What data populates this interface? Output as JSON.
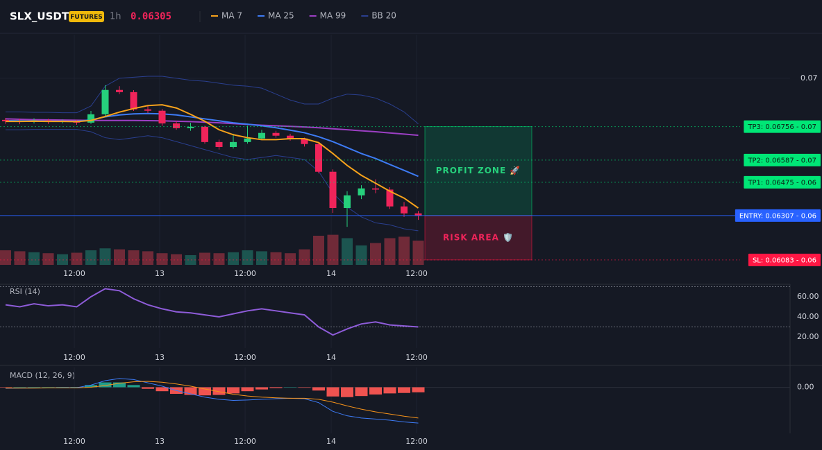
{
  "chart_data": {
    "type": "candlestick",
    "symbol": "SLX_USDT",
    "badge": "FUTURES",
    "interval": "1h",
    "last_price": "0.06305",
    "legend": [
      {
        "name": "MA 7",
        "color": "#f7a21b"
      },
      {
        "name": "MA 25",
        "color": "#3d7bf5"
      },
      {
        "name": "MA 99",
        "color": "#9c3fc4"
      },
      {
        "name": "BB 20",
        "color": "#2a3f8f"
      }
    ],
    "xticks": [
      {
        "value": 4.83,
        "label": "12:00"
      },
      {
        "value": 10.83,
        "label": "13"
      },
      {
        "value": 16.83,
        "label": "12:00"
      },
      {
        "value": 22.88,
        "label": "14"
      },
      {
        "value": 28.88,
        "label": "12:00"
      }
    ],
    "ylim": [
      0.06058,
      0.0722
    ],
    "yticks": [
      0.07
    ],
    "open": [
      0.0679,
      0.06783,
      0.0678,
      0.06787,
      0.0678,
      0.06783,
      0.06776,
      0.06818,
      0.06941,
      0.0693,
      0.06843,
      0.06836,
      0.06772,
      0.06748,
      0.06755,
      0.06678,
      0.06653,
      0.06678,
      0.06696,
      0.06724,
      0.0671,
      0.06696,
      0.06668,
      0.06528,
      0.06345,
      0.06409,
      0.06444,
      0.06438,
      0.06353,
      0.06318
    ],
    "high": [
      0.068,
      0.06795,
      0.06798,
      0.06795,
      0.06792,
      0.0679,
      0.06835,
      0.06965,
      0.0696,
      0.0694,
      0.0686,
      0.06845,
      0.06785,
      0.06775,
      0.0676,
      0.0669,
      0.0672,
      0.0676,
      0.0674,
      0.06735,
      0.0672,
      0.067,
      0.06675,
      0.0654,
      0.0643,
      0.0646,
      0.0649,
      0.0645,
      0.06375,
      0.0633
    ],
    "low": [
      0.0677,
      0.06768,
      0.06772,
      0.0677,
      0.06772,
      0.06765,
      0.0677,
      0.0681,
      0.0692,
      0.06835,
      0.06825,
      0.0676,
      0.0674,
      0.06735,
      0.0667,
      0.0664,
      0.06645,
      0.0667,
      0.0669,
      0.067,
      0.06685,
      0.06655,
      0.0652,
      0.0632,
      0.0625,
      0.0639,
      0.0642,
      0.0634,
      0.063,
      0.06285
    ],
    "close": [
      0.06783,
      0.0678,
      0.06787,
      0.0678,
      0.06783,
      0.06776,
      0.06818,
      0.06941,
      0.0693,
      0.06843,
      0.06836,
      0.06772,
      0.06748,
      0.06755,
      0.06678,
      0.06653,
      0.06678,
      0.06696,
      0.06724,
      0.0671,
      0.06696,
      0.06668,
      0.06528,
      0.06345,
      0.06409,
      0.06444,
      0.06438,
      0.06353,
      0.06318,
      0.06305
    ],
    "up_color": "#26d07c",
    "down_color": "#f0245a",
    "volume": [
      30,
      28,
      26,
      24,
      22,
      25,
      30,
      34,
      32,
      30,
      28,
      24,
      22,
      20,
      25,
      24,
      26,
      30,
      28,
      26,
      24,
      32,
      60,
      62,
      55,
      40,
      45,
      55,
      58,
      50
    ],
    "vlim": [
      0,
      100
    ],
    "ma7": [
      0.06782,
      0.06782,
      0.06783,
      0.06782,
      0.06782,
      0.06781,
      0.06787,
      0.06807,
      0.06829,
      0.06847,
      0.06862,
      0.06866,
      0.0685,
      0.06818,
      0.06783,
      0.0674,
      0.06715,
      0.067,
      0.0669,
      0.0669,
      0.06695,
      0.06695,
      0.06675,
      0.0662,
      0.0656,
      0.0651,
      0.0647,
      0.0643,
      0.06395,
      0.06345
    ],
    "ma25": [
      0.06786,
      0.06785,
      0.06784,
      0.06784,
      0.06783,
      0.06783,
      0.0679,
      0.06805,
      0.06815,
      0.0682,
      0.06822,
      0.0682,
      0.06815,
      0.06805,
      0.06795,
      0.06785,
      0.06775,
      0.06768,
      0.0676,
      0.0675,
      0.06738,
      0.06725,
      0.06705,
      0.0668,
      0.0665,
      0.0662,
      0.06595,
      0.06565,
      0.06535,
      0.06505
    ],
    "ma99": [
      0.06795,
      0.06793,
      0.06791,
      0.0679,
      0.06789,
      0.06788,
      0.06787,
      0.06787,
      0.06787,
      0.06787,
      0.06786,
      0.06785,
      0.06783,
      0.06781,
      0.06778,
      0.06775,
      0.06771,
      0.06767,
      0.06763,
      0.0676,
      0.06757,
      0.06754,
      0.0675,
      0.06745,
      0.0674,
      0.06735,
      0.0673,
      0.06724,
      0.06718,
      0.06712
    ],
    "bb_upper": [
      0.0683,
      0.0683,
      0.06828,
      0.06828,
      0.06826,
      0.06826,
      0.0686,
      0.0696,
      0.07,
      0.07005,
      0.0701,
      0.0701,
      0.07,
      0.0699,
      0.06985,
      0.06975,
      0.06965,
      0.0696,
      0.0695,
      0.0692,
      0.0689,
      0.0687,
      0.0687,
      0.069,
      0.0692,
      0.06915,
      0.069,
      0.0687,
      0.0683,
      0.0677
    ],
    "bb_lower": [
      0.0674,
      0.0674,
      0.06742,
      0.06742,
      0.06742,
      0.06742,
      0.0673,
      0.067,
      0.0669,
      0.067,
      0.0671,
      0.067,
      0.0668,
      0.0666,
      0.0664,
      0.0662,
      0.066,
      0.0659,
      0.066,
      0.0661,
      0.066,
      0.0659,
      0.0653,
      0.0642,
      0.0635,
      0.063,
      0.0627,
      0.0626,
      0.0624,
      0.0623
    ],
    "levels": [
      {
        "label": "TP3: 0.06756 - 0.07",
        "value": 0.06756,
        "color": "#00e676"
      },
      {
        "label": "TP2: 0.06587 - 0.07",
        "value": 0.06587,
        "color": "#00e676"
      },
      {
        "label": "TP1: 0.06475 - 0.06",
        "value": 0.06475,
        "color": "#00e676"
      },
      {
        "label": "ENTRY: 0.06307 - 0.06",
        "value": 0.06307,
        "color": "#2962ff"
      },
      {
        "label": "SL: 0.06083 - 0.06",
        "value": 0.06083,
        "color": "#ff1744"
      }
    ],
    "profit_zone": "PROFIT ZONE 🚀",
    "risk_zone": "RISK AREA 🛡️",
    "rsi_title": "RSI (14)",
    "rsi": [
      52,
      50,
      53,
      51,
      52,
      50,
      60,
      68,
      66,
      58,
      52,
      48,
      45,
      44,
      42,
      40,
      43,
      46,
      48,
      46,
      44,
      42,
      30,
      22,
      28,
      33,
      35,
      32,
      31,
      30
    ],
    "rsi_color": "#8e5cd9",
    "rsi_lim": [
      9,
      72.4
    ],
    "rsi_levels": [
      70,
      30
    ],
    "rsi_ticks": [
      {
        "value": 60,
        "label": "60.00"
      },
      {
        "value": 40,
        "label": "40.00"
      },
      {
        "value": 20,
        "label": "20.00"
      }
    ],
    "macd_title": "MACD (12, 26, 9)",
    "macd_lim": [
      -0.0021,
      0.0009
    ],
    "macd_ticks": [
      {
        "value": 0,
        "label": "0.00"
      }
    ],
    "macd": [
      -5e-05,
      -4e-05,
      -3e-05,
      -3e-05,
      -2e-05,
      -2e-05,
      0.0001,
      0.0003,
      0.0004,
      0.00035,
      0.0002,
      5e-05,
      -0.00015,
      -0.0003,
      -0.00045,
      -0.00055,
      -0.0006,
      -0.00058,
      -0.00055,
      -0.00052,
      -0.0005,
      -0.00052,
      -0.0007,
      -0.0011,
      -0.0013,
      -0.0014,
      -0.00145,
      -0.0015,
      -0.00158,
      -0.00163
    ],
    "signal": [
      -4e-05,
      -4e-05,
      -4e-05,
      -3e-05,
      -3e-05,
      -3e-05,
      0,
      8e-05,
      0.00018,
      0.00025,
      0.00027,
      0.00023,
      0.00015,
      5e-05,
      -8e-05,
      -0.0002,
      -0.00032,
      -0.0004,
      -0.00045,
      -0.00048,
      -0.0005,
      -0.0005,
      -0.00055,
      -0.00068,
      -0.00085,
      -0.001,
      -0.00112,
      -0.00122,
      -0.00132,
      -0.0014
    ],
    "histogram": [
      -1e-05,
      0,
      1e-05,
      0,
      1e-05,
      1e-05,
      0.0001,
      0.00022,
      0.00022,
      0.0001,
      -7e-05,
      -0.00018,
      -0.0003,
      -0.00035,
      -0.00037,
      -0.00035,
      -0.00028,
      -0.00018,
      -0.0001,
      -4e-05,
      0,
      -2e-05,
      -0.00015,
      -0.00042,
      -0.00045,
      -0.0004,
      -0.00033,
      -0.00028,
      -0.00026,
      -0.00023
    ],
    "macd_color": "#3d7bf5",
    "signal_color": "#f7931a",
    "hist_up_color": "#1f9e8a",
    "hist_down_color": "#ef5350"
  }
}
